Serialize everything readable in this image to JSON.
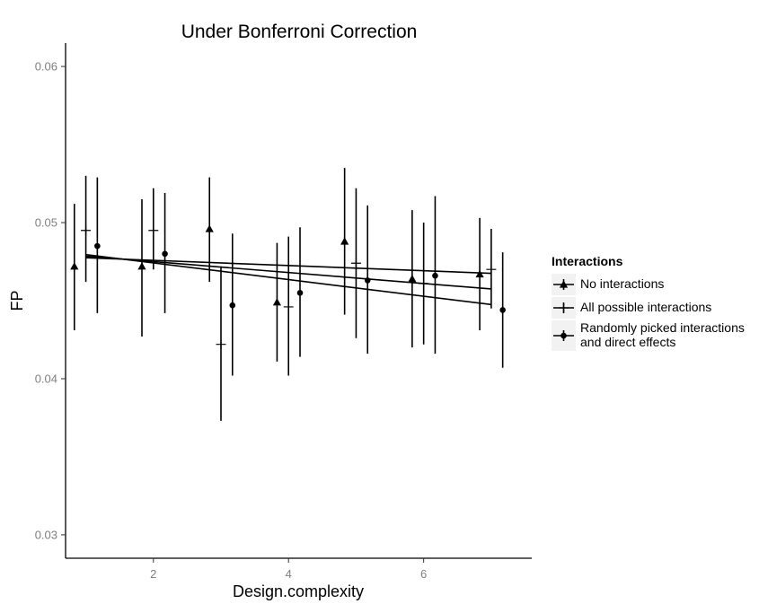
{
  "chart_data": {
    "type": "scatter",
    "title": "Under Bonferroni Correction",
    "xlabel": "Design.complexity",
    "ylabel": "FP",
    "xlim": [
      0.7,
      7.6
    ],
    "ylim": [
      0.0285,
      0.0615
    ],
    "x_ticks": [
      2,
      4,
      6
    ],
    "x_tick_labels": [
      "2",
      "4",
      "6"
    ],
    "y_ticks": [
      0.03,
      0.04,
      0.05,
      0.06
    ],
    "y_tick_labels": [
      "0.03",
      "0.04",
      "0.05",
      "0.06"
    ],
    "grid": false,
    "legend": {
      "title": "Interactions",
      "position": "right",
      "entries": [
        {
          "label_lines": [
            "No interactions"
          ],
          "marker": "triangle"
        },
        {
          "label_lines": [
            "All possible interactions"
          ],
          "marker": "plus"
        },
        {
          "label_lines": [
            "Randomly picked interactions",
            "and direct effects"
          ],
          "marker": "circle"
        }
      ]
    },
    "series": [
      {
        "name": "No interactions",
        "marker": "triangle",
        "points": [
          {
            "x": 0.83,
            "y": 0.0472,
            "lo": 0.0431,
            "hi": 0.0512
          },
          {
            "x": 1.83,
            "y": 0.0472,
            "lo": 0.0427,
            "hi": 0.0515
          },
          {
            "x": 2.83,
            "y": 0.0496,
            "lo": 0.0462,
            "hi": 0.0529
          },
          {
            "x": 3.83,
            "y": 0.0449,
            "lo": 0.0411,
            "hi": 0.0487
          },
          {
            "x": 4.83,
            "y": 0.0488,
            "lo": 0.0441,
            "hi": 0.0535
          },
          {
            "x": 5.83,
            "y": 0.0464,
            "lo": 0.042,
            "hi": 0.0508
          },
          {
            "x": 6.83,
            "y": 0.0467,
            "lo": 0.0431,
            "hi": 0.0503
          }
        ],
        "trend": {
          "x": [
            1,
            7
          ],
          "y": [
            0.04775,
            0.04675
          ]
        }
      },
      {
        "name": "All possible interactions",
        "marker": "plus",
        "points": [
          {
            "x": 1.0,
            "y": 0.0495,
            "lo": 0.0462,
            "hi": 0.053
          },
          {
            "x": 2.0,
            "y": 0.0495,
            "lo": 0.047,
            "hi": 0.0522
          },
          {
            "x": 3.0,
            "y": 0.0422,
            "lo": 0.0373,
            "hi": 0.0472
          },
          {
            "x": 4.0,
            "y": 0.0446,
            "lo": 0.0402,
            "hi": 0.0491
          },
          {
            "x": 5.0,
            "y": 0.0474,
            "lo": 0.0426,
            "hi": 0.0522
          },
          {
            "x": 6.0,
            "y": 0.0461,
            "lo": 0.0422,
            "hi": 0.05
          },
          {
            "x": 7.0,
            "y": 0.047,
            "lo": 0.0445,
            "hi": 0.0496
          }
        ],
        "trend": {
          "x": [
            1,
            7
          ],
          "y": [
            0.04785,
            0.04575
          ]
        }
      },
      {
        "name": "Randomly picked interactions and direct effects",
        "marker": "circle",
        "points": [
          {
            "x": 1.17,
            "y": 0.0485,
            "lo": 0.0442,
            "hi": 0.0529
          },
          {
            "x": 2.17,
            "y": 0.048,
            "lo": 0.0442,
            "hi": 0.0519
          },
          {
            "x": 3.17,
            "y": 0.0447,
            "lo": 0.0402,
            "hi": 0.0493
          },
          {
            "x": 4.17,
            "y": 0.0455,
            "lo": 0.0414,
            "hi": 0.0497
          },
          {
            "x": 5.17,
            "y": 0.0463,
            "lo": 0.0416,
            "hi": 0.0511
          },
          {
            "x": 6.17,
            "y": 0.0466,
            "lo": 0.0416,
            "hi": 0.0517
          },
          {
            "x": 7.17,
            "y": 0.0444,
            "lo": 0.0407,
            "hi": 0.0481
          }
        ],
        "trend": {
          "x": [
            1,
            7
          ],
          "y": [
            0.04795,
            0.04475
          ]
        }
      }
    ]
  }
}
